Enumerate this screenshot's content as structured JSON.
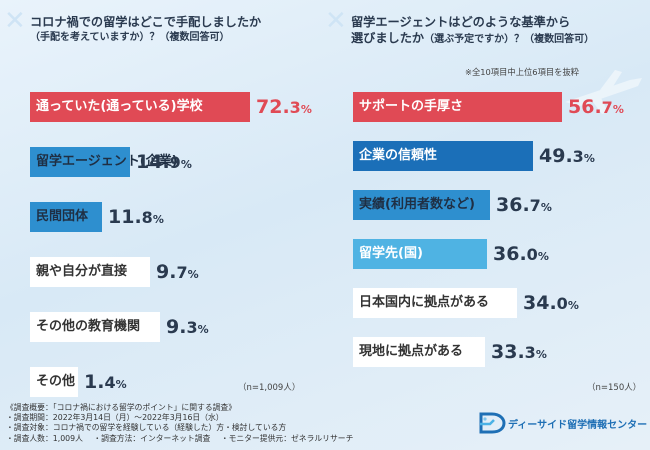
{
  "chart_data": [
    {
      "type": "bar",
      "orientation": "horizontal",
      "title": "コロナ禍での留学はどこで手配しましたか",
      "subtitle": "（手配を考えていますか）？（複数回答可）",
      "categories": [
        "通っていた(通っている)学校",
        "留学エージェント(企業)",
        "民間団体",
        "親や自分が直接",
        "その他の教育機関",
        "その他"
      ],
      "values": [
        72.3,
        14.9,
        11.8,
        9.7,
        9.3,
        1.4
      ],
      "value_labels": [
        {
          "int": "72.",
          "dec": "3",
          "pct": "%"
        },
        {
          "int": "14.",
          "dec": "9",
          "pct": "%"
        },
        {
          "int": "11.",
          "dec": "8",
          "pct": "%"
        },
        {
          "int": "9.",
          "dec": "7",
          "pct": "%"
        },
        {
          "int": "9.",
          "dec": "3",
          "pct": "%"
        },
        {
          "int": "1.",
          "dec": "4",
          "pct": "%"
        }
      ],
      "unit": "%",
      "n_label": "（n=1,009人）",
      "xlim": [
        0,
        100
      ],
      "colors": [
        "#e04a55",
        "#2e8fcf",
        "#2e8fcf",
        "#ffffff",
        "#ffffff",
        "#ffffff"
      ],
      "label_colors": [
        "#ffffff",
        "#1f2f44",
        "#1f2f44",
        "#333333",
        "#333333",
        "#333333"
      ],
      "highlight_first": true
    },
    {
      "type": "bar",
      "orientation": "horizontal",
      "title_line1": "留学エージェントはどのような基準から",
      "title_line2": "選びましたか",
      "subtitle": "（選ぶ予定ですか）？（複数回答可）",
      "note": "※全10項目中上位6項目を抜粋",
      "categories": [
        "サポートの手厚さ",
        "企業の信頼性",
        "実績(利用者数など)",
        "留学先(国)",
        "日本国内に拠点がある",
        "現地に拠点がある"
      ],
      "values": [
        56.7,
        49.3,
        36.7,
        36.0,
        34.0,
        33.3
      ],
      "value_labels": [
        {
          "int": "56.",
          "dec": "7",
          "pct": "%"
        },
        {
          "int": "49.",
          "dec": "3",
          "pct": "%"
        },
        {
          "int": "36.",
          "dec": "7",
          "pct": "%"
        },
        {
          "int": "36.",
          "dec": "0",
          "pct": "%"
        },
        {
          "int": "34.",
          "dec": "0",
          "pct": "%"
        },
        {
          "int": "33.",
          "dec": "3",
          "pct": "%"
        }
      ],
      "unit": "%",
      "n_label": "（n=150人）",
      "xlim": [
        0,
        65
      ],
      "colors": [
        "#e04a55",
        "#1b6fb8",
        "#2e8fcf",
        "#4fb3e3",
        "#ffffff",
        "#ffffff"
      ],
      "label_colors": [
        "#ffffff",
        "#ffffff",
        "#1f2f44",
        "#ffffff",
        "#333333",
        "#333333"
      ],
      "highlight_first": true
    }
  ],
  "footer": {
    "line1": "《調査概要：「コロナ禍における留学のポイント」に関する調査》",
    "line2": "・調査期間：2022年3月14日（月）～2022年3月16日（水）",
    "line3": "・調査対象：コロナ禍での留学を経験している（経験した）方・検討している方",
    "line4_a": "・調査人数：1,009人",
    "line4_b": "・調査方法：インターネット調査",
    "line4_c": "・モニター提供元：ゼネラルリサーチ"
  },
  "logo": {
    "text": "ディーサイド留学情報センター",
    "brand_color": "#1e6fb5",
    "icon": "d-side-logo-icon"
  },
  "decor": {
    "plane_icon": "airplane-icon",
    "corner_mark": "x-mark-icon"
  }
}
